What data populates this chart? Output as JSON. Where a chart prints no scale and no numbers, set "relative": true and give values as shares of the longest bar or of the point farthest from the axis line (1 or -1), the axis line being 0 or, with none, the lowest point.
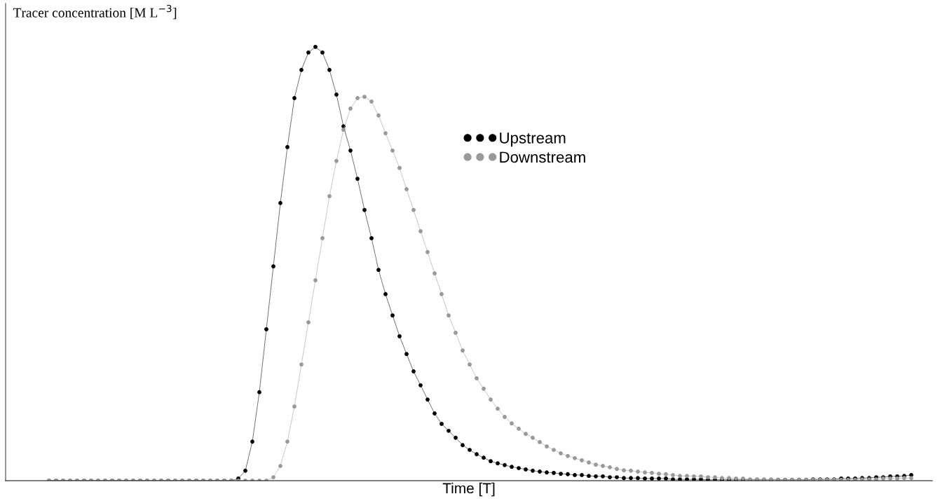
{
  "chart_data": {
    "type": "line",
    "relative": true,
    "xlabel": "Time [T]",
    "ylabel": "Tracer concentration [M L$^{−3}$]",
    "categories": [
      null,
      null,
      null,
      null,
      null,
      null,
      null,
      null,
      null,
      null,
      null,
      null,
      null,
      null,
      null,
      null,
      null,
      null,
      null,
      null,
      null,
      null,
      null,
      null,
      null,
      null,
      null,
      null,
      null,
      null,
      null,
      null,
      null,
      null,
      null,
      null,
      null,
      null,
      null,
      null,
      null,
      null,
      null,
      null,
      null,
      null,
      null,
      null,
      null,
      null,
      null,
      null,
      null,
      null,
      null,
      null,
      null,
      null,
      null,
      null,
      null,
      null,
      null,
      null,
      null,
      null,
      null,
      null,
      null,
      null,
      null,
      null,
      null,
      null,
      null,
      null,
      null,
      null,
      null,
      null,
      null,
      null,
      null,
      null,
      null,
      null,
      null,
      null,
      null,
      null,
      null,
      null,
      null,
      null,
      null,
      null,
      null,
      null,
      null,
      null,
      null,
      null,
      null,
      null,
      null,
      null,
      null,
      null,
      null,
      null,
      null,
      null,
      null,
      null,
      null,
      null,
      null,
      null,
      null,
      null,
      null,
      null,
      null,
      null
    ],
    "series": [
      {
        "name": "Upstream",
        "color": "#000000",
        "values": [
          0,
          0,
          0,
          0,
          0,
          0,
          0,
          0,
          0,
          0,
          0,
          0,
          0,
          0,
          0,
          0,
          0,
          0,
          0,
          0,
          0,
          0,
          0,
          0,
          0,
          0,
          0,
          0.005,
          0.023,
          0.09,
          0.204,
          0.349,
          0.494,
          0.64,
          0.769,
          0.882,
          0.947,
          0.987,
          1,
          0.987,
          0.947,
          0.89,
          0.817,
          0.761,
          0.696,
          0.624,
          0.559,
          0.486,
          0.43,
          0.381,
          0.333,
          0.292,
          0.252,
          0.22,
          0.187,
          0.155,
          0.131,
          0.115,
          0.099,
          0.082,
          0.071,
          0.061,
          0.053,
          0.045,
          0.04,
          0.036,
          0.032,
          0.029,
          0.026,
          0.023,
          0.021,
          0.019,
          0.018,
          0.016,
          0.015,
          0.013,
          0.013,
          0.011,
          0.01,
          0.01,
          0.008,
          0.008,
          0.006,
          0.006,
          0.006,
          0.005,
          0.005,
          0.005,
          0.005,
          0.003,
          0.003,
          0.003,
          0.003,
          0.003,
          0.002,
          0.002,
          0.002,
          0.002,
          0.002,
          0.002,
          0.002,
          0.002,
          0.002,
          0.002,
          0.002,
          0.002,
          0.002,
          0.002,
          0.002,
          0.003,
          0.003,
          0.003,
          0.003,
          0.005,
          0.005,
          0.005,
          0.006,
          0.006,
          0.008,
          0.008,
          0.01,
          0.01,
          0.011,
          0.013
        ]
      },
      {
        "name": "Downstream",
        "color": "#999999",
        "values": [
          0,
          0,
          0,
          0,
          0,
          0,
          0,
          0,
          0,
          0,
          0,
          0,
          0,
          0,
          0,
          0,
          0,
          0,
          0,
          0,
          0,
          0,
          0,
          0,
          0,
          0,
          0,
          0,
          0,
          0,
          0,
          0,
          0.008,
          0.034,
          0.09,
          0.171,
          0.268,
          0.365,
          0.462,
          0.559,
          0.656,
          0.737,
          0.809,
          0.858,
          0.882,
          0.885,
          0.874,
          0.842,
          0.801,
          0.761,
          0.721,
          0.672,
          0.624,
          0.575,
          0.527,
          0.478,
          0.43,
          0.381,
          0.341,
          0.3,
          0.268,
          0.236,
          0.212,
          0.187,
          0.166,
          0.147,
          0.132,
          0.12,
          0.108,
          0.099,
          0.089,
          0.079,
          0.071,
          0.063,
          0.057,
          0.052,
          0.047,
          0.042,
          0.037,
          0.034,
          0.031,
          0.027,
          0.024,
          0.023,
          0.021,
          0.019,
          0.018,
          0.016,
          0.015,
          0.013,
          0.011,
          0.011,
          0.01,
          0.01,
          0.008,
          0.008,
          0.006,
          0.006,
          0.005,
          0.005,
          0.003,
          0.003,
          0.003,
          0.003,
          0.002,
          0.002,
          0.002,
          0.002,
          0.002,
          0.002,
          0.002,
          0.002,
          0.002,
          0.002,
          0.002,
          0.002,
          0.003,
          0.003,
          0.003,
          0.005,
          0.005,
          0.005,
          0.006,
          0.006
        ]
      }
    ],
    "marker": "circle",
    "line_style": "solid",
    "legend": "top"
  }
}
